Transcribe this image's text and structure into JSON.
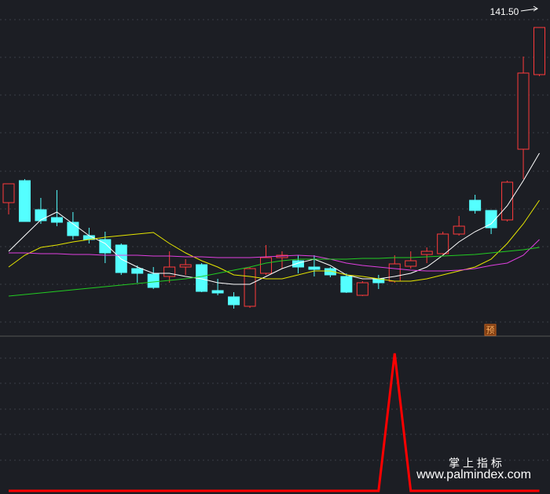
{
  "chart_data": [
    {
      "type": "candlestick",
      "up_color": "#ff3b3b",
      "down_color": "#54ffff",
      "ylim": [
        62.9,
        148.5
      ],
      "open": [
        96.9,
        102.5,
        95.1,
        93.1,
        91.9,
        88.5,
        87.5,
        86.1,
        80.1,
        78.7,
        78.1,
        80.5,
        81.1,
        74.5,
        72.9,
        70.5,
        78.9,
        82.9,
        82.1,
        80.5,
        80.1,
        78.1,
        73.3,
        77.5,
        76.9,
        80.7,
        83.7,
        83.9,
        88.9,
        97.5,
        94.9,
        92.5,
        110.5,
        129.5
      ],
      "high": [
        101.7,
        102.9,
        98.1,
        100.1,
        94.5,
        90.5,
        89.5,
        86.5,
        80.9,
        80.5,
        84.5,
        82.5,
        81.5,
        77.5,
        74.1,
        80.5,
        86.1,
        84.5,
        83.5,
        83.5,
        80.5,
        78.9,
        76.9,
        78.5,
        83.5,
        84.5,
        85.5,
        89.5,
        93.5,
        98.9,
        94.9,
        102.5,
        134.1,
        141.5
      ],
      "low": [
        93.9,
        92.1,
        91.5,
        90.9,
        87.5,
        86.5,
        81.5,
        78.5,
        76.5,
        74.9,
        76.5,
        78.5,
        74.1,
        73.3,
        69.9,
        70.1,
        78.5,
        80.1,
        78.9,
        78.1,
        77.9,
        73.9,
        73.1,
        74.9,
        76.5,
        80.1,
        81.5,
        83.7,
        88.5,
        94.1,
        88.9,
        92.1,
        102.9,
        129.1
      ],
      "close": [
        101.7,
        92.1,
        92.3,
        91.9,
        88.5,
        87.5,
        84.1,
        79.1,
        78.9,
        75.3,
        80.5,
        81.1,
        74.3,
        73.9,
        70.9,
        80.1,
        82.9,
        83.5,
        80.5,
        79.9,
        78.5,
        74.1,
        76.5,
        76.5,
        81.3,
        82.1,
        84.5,
        88.9,
        90.9,
        94.9,
        90.5,
        102.1,
        129.9,
        141.5
      ],
      "series": [
        {
          "color": "#ffffff",
          "values": [
            84.5,
            88.5,
            92.5,
            94.5,
            91.5,
            88.5,
            86.5,
            82.5,
            80.5,
            78.9,
            78.9,
            78.1,
            77.5,
            76.5,
            76.1,
            76.1,
            78.1,
            80.1,
            81.5,
            82.5,
            80.9,
            78.5,
            77.5,
            77.5,
            78.1,
            78.9,
            80.5,
            83.5,
            86.9,
            89.5,
            91.5,
            96.1,
            102.5,
            109.5
          ]
        },
        {
          "color": "#e6e600",
          "values": [
            80.5,
            83.5,
            85.5,
            86.1,
            86.9,
            87.5,
            88.1,
            88.5,
            88.9,
            89.3,
            86.5,
            84.1,
            82.1,
            80.5,
            78.5,
            78.1,
            77.5,
            77.5,
            78.5,
            79.5,
            79.5,
            78.5,
            78.1,
            77.5,
            76.9,
            76.9,
            77.5,
            78.5,
            79.5,
            80.5,
            82.5,
            86.5,
            91.5,
            97.5
          ]
        },
        {
          "color": "#e040e0",
          "values": [
            84.1,
            84.1,
            83.9,
            83.9,
            83.7,
            83.7,
            83.5,
            83.5,
            83.5,
            83.3,
            83.3,
            83.1,
            83.1,
            82.9,
            82.9,
            82.9,
            83.1,
            83.3,
            83.5,
            83.3,
            82.5,
            81.5,
            80.9,
            80.5,
            80.1,
            79.7,
            79.5,
            79.5,
            79.7,
            80.1,
            80.9,
            81.5,
            83.5,
            87.5
          ]
        },
        {
          "color": "#22cc22",
          "values": [
            73.1,
            73.5,
            73.9,
            74.3,
            74.7,
            75.1,
            75.5,
            75.9,
            76.3,
            76.7,
            77.1,
            77.5,
            78.1,
            78.9,
            79.7,
            80.5,
            81.5,
            82.1,
            82.5,
            82.5,
            82.5,
            82.5,
            82.7,
            82.7,
            82.9,
            82.9,
            83.1,
            83.3,
            83.5,
            83.7,
            84.1,
            84.5,
            84.9,
            85.5
          ]
        }
      ],
      "high_label": {
        "value": 141.5,
        "label": "141.50"
      },
      "badge": "预"
    },
    {
      "type": "line",
      "color": "#ff0000",
      "ylim": [
        -0.023,
        1.114
      ],
      "values": [
        0,
        0,
        0,
        0,
        0,
        0,
        0,
        0,
        0,
        0,
        0,
        0,
        0,
        0,
        0,
        0,
        0,
        0,
        0,
        0,
        0,
        0,
        0,
        0,
        1,
        0,
        0,
        0,
        0,
        0,
        0,
        0,
        0,
        0
      ]
    }
  ],
  "watermark": {
    "title": "掌 上 指 标",
    "url": "www.palmindex.com"
  }
}
